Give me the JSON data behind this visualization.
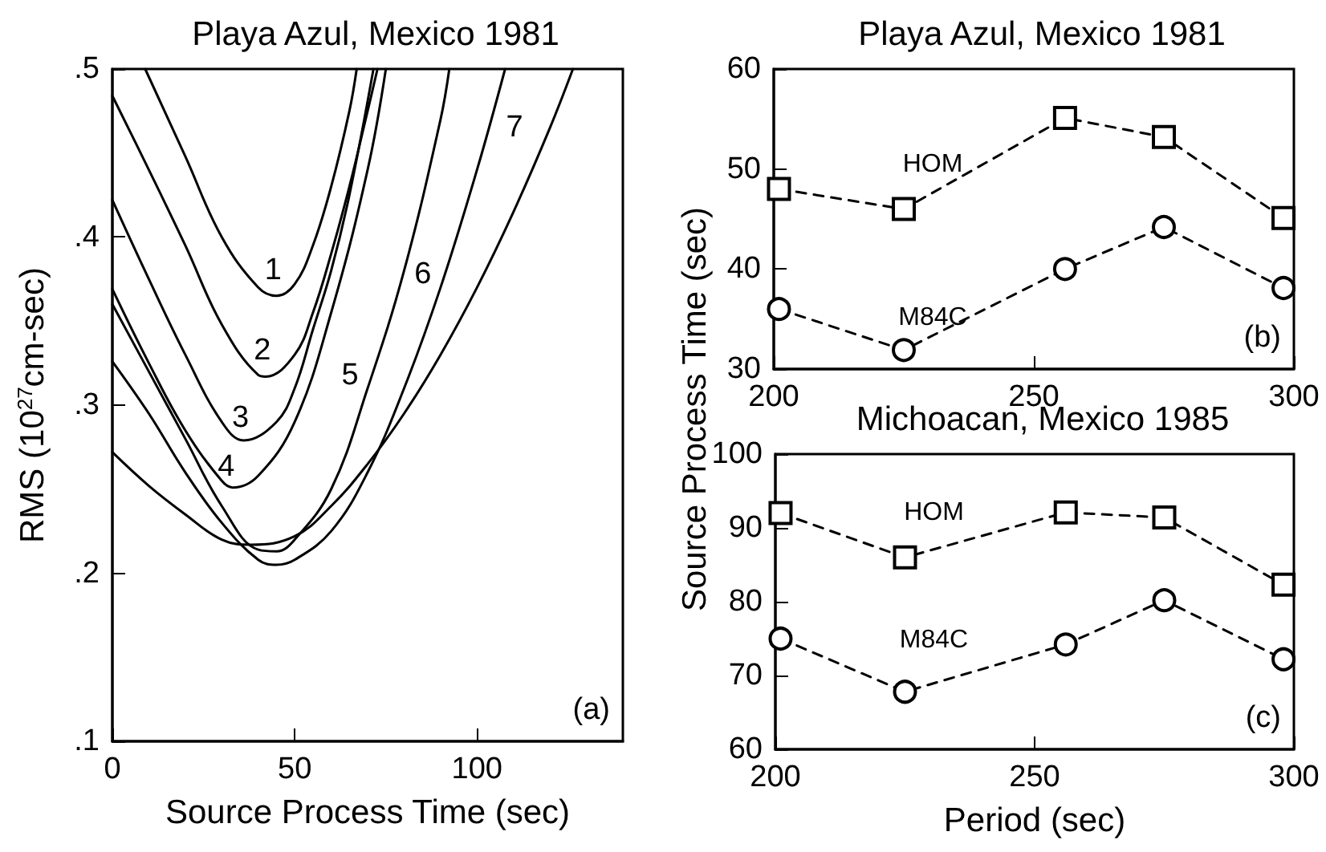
{
  "chart_data": [
    {
      "type": "line",
      "title": "Playa Azul, Mexico 1981",
      "xlabel": "Source Process Time (sec)",
      "ylabel": "RMS (10$^{27}$cm-sec)",
      "xlim": [
        0,
        140
      ],
      "xticks": [
        0,
        50,
        100
      ],
      "ylim": [
        0.1,
        0.5
      ],
      "yticks": [
        {
          "value": 0.1,
          "label": ".1"
        },
        {
          "value": 0.2,
          "label": ".2"
        },
        {
          "value": 0.3,
          "label": ".3"
        },
        {
          "value": 0.4,
          "label": ".4"
        },
        {
          "value": 0.5,
          "label": ".5"
        }
      ],
      "grid": false,
      "marker": "none",
      "line_style": "solid",
      "series": [
        {
          "name": "1",
          "color": "#000000",
          "x": [
            9,
            20,
            30,
            40,
            45,
            50,
            55,
            60,
            65,
            67
          ],
          "values": [
            0.5,
            0.448,
            0.4,
            0.37,
            0.365,
            0.372,
            0.395,
            0.43,
            0.475,
            0.5
          ]
        },
        {
          "name": "2",
          "color": "#000000",
          "x": [
            0,
            10,
            20,
            30,
            40,
            42,
            50,
            55,
            60,
            65,
            70,
            72.7
          ],
          "values": [
            0.484,
            0.44,
            0.395,
            0.348,
            0.318,
            0.317,
            0.33,
            0.355,
            0.39,
            0.43,
            0.475,
            0.5
          ]
        },
        {
          "name": "3",
          "color": "#000000",
          "x": [
            0,
            10,
            20,
            30,
            36,
            45,
            50,
            55,
            60,
            65,
            71.6
          ],
          "values": [
            0.422,
            0.375,
            0.33,
            0.29,
            0.279,
            0.29,
            0.31,
            0.345,
            0.38,
            0.425,
            0.5
          ]
        },
        {
          "name": "4",
          "color": "#000000",
          "x": [
            0,
            10,
            20,
            30,
            33,
            40,
            50,
            60,
            70,
            75
          ],
          "values": [
            0.369,
            0.325,
            0.285,
            0.255,
            0.251,
            0.258,
            0.29,
            0.355,
            0.44,
            0.5
          ]
        },
        {
          "name": "5",
          "color": "#000000",
          "x": [
            0,
            10,
            20,
            30,
            40,
            45,
            50,
            60,
            70,
            80,
            90,
            92.4
          ],
          "values": [
            0.36,
            0.32,
            0.28,
            0.24,
            0.214,
            0.213,
            0.22,
            0.25,
            0.31,
            0.38,
            0.47,
            0.5
          ]
        },
        {
          "name": "6",
          "color": "#000000",
          "x": [
            0,
            10,
            20,
            30,
            40,
            45,
            50,
            60,
            70,
            80,
            90,
            100,
            107.7
          ],
          "values": [
            0.326,
            0.295,
            0.26,
            0.23,
            0.208,
            0.205,
            0.208,
            0.225,
            0.26,
            0.31,
            0.37,
            0.44,
            0.5
          ]
        },
        {
          "name": "7",
          "color": "#000000",
          "x": [
            0,
            10,
            20,
            30,
            38,
            50,
            60,
            70,
            80,
            90,
            100,
            110,
            120,
            126.3
          ],
          "values": [
            0.272,
            0.252,
            0.235,
            0.22,
            0.217,
            0.222,
            0.24,
            0.265,
            0.295,
            0.33,
            0.37,
            0.415,
            0.465,
            0.5
          ]
        }
      ],
      "annotations": [
        "(a)"
      ]
    },
    {
      "type": "line",
      "title": "Playa Azul, Mexico 1981",
      "xlim": [
        200,
        300
      ],
      "xticks": [
        200,
        250,
        300
      ],
      "ylim": [
        30,
        60
      ],
      "yticks": [
        30,
        40,
        50,
        60
      ],
      "grid": false,
      "line_style": "dashed",
      "series": [
        {
          "name": "HOM",
          "color": "#000000",
          "marker": "square",
          "x": [
            201,
            225,
            256,
            275,
            298
          ],
          "values": [
            48,
            46,
            55.1,
            53.2,
            45.1
          ]
        },
        {
          "name": "M84C",
          "color": "#000000",
          "marker": "circle",
          "x": [
            201,
            225,
            256,
            275,
            298
          ],
          "values": [
            36,
            31.9,
            40,
            44.2,
            38.1
          ]
        }
      ],
      "annotations": [
        "(b)"
      ]
    },
    {
      "type": "line",
      "title": "Michoacan, Mexico 1985",
      "xlabel": "Period (sec)",
      "ylabel": "Source Process Time (sec)",
      "xlim": [
        200,
        300
      ],
      "xticks": [
        200,
        250,
        300
      ],
      "ylim": [
        60,
        100
      ],
      "yticks": [
        60,
        70,
        80,
        90,
        100
      ],
      "grid": false,
      "line_style": "dashed",
      "series": [
        {
          "name": "HOM",
          "color": "#000000",
          "marker": "square",
          "x": [
            201,
            225,
            256,
            275,
            298
          ],
          "values": [
            92,
            86,
            92.1,
            91.4,
            82.3
          ]
        },
        {
          "name": "M84C",
          "color": "#000000",
          "marker": "circle",
          "x": [
            201,
            225,
            256,
            275,
            298
          ],
          "values": [
            75,
            67.8,
            74.2,
            80.2,
            72.2
          ]
        }
      ],
      "annotations": [
        "(c)"
      ]
    }
  ]
}
